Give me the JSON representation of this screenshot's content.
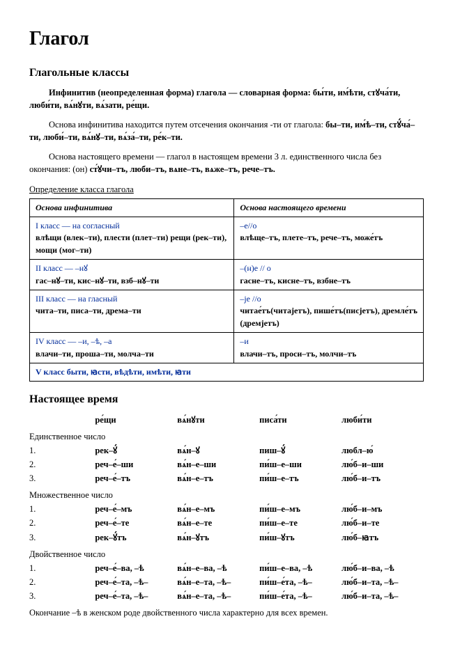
{
  "title": "Глагол",
  "section1": {
    "heading": "Глагольные классы",
    "para1": "Инфинитив (неопределенная форма) глагола — словарная форма: бы́ти, им́ѣти, стꙋча́ти, люби́ти, вѧ́нꙋти, вѧ́зати, ре́щи.",
    "para2_a": "Основа инфинитива находится путем отсечения окончания -ти от глагола: ",
    "para2_b": "бы–ти, им́ѣ–ти, стꙋ́ча́–ти, люби́–ти, вѧ́нꙋ–ти, вѧ́за́–ти, ре́к–ти.",
    "para3_a": "Основа настоящего времени — глагол в настоящем времени 3 л. единственного числа без окончания: (он) ",
    "para3_b": "ст́ꙋчи–тъ, люби–тъ, вѧне–тъ, вѧже–тъ, рече–тъ.",
    "tableCaption": "Определение класса глагола"
  },
  "classTable": {
    "headers": [
      "Основа инфинитива",
      "Основа настоящего времени"
    ],
    "rows": [
      {
        "left_head": "I класс — на согласный",
        "left_body": "влѣщи (влек–ти), плести (плет–ти) рещи   (рек–ти),   мощи (мог–ти)",
        "right_head": "–е//о",
        "right_body": "влѣще–тъ, плете–тъ,   рече–тъ, може́тъ"
      },
      {
        "left_head": "II класс — –нꙋ",
        "left_body": "гас–нꙋ–ти, кис–нꙋ–ти, взб–нꙋ–ти",
        "right_head": "–(н)е // о",
        "right_body": "гасне–тъ, кисне–тъ, взбне–тъ"
      },
      {
        "left_head": "III класс — на гласный",
        "left_body": "чита–ти, писа–ти, дрема–ти",
        "right_head": "–je //о",
        "right_body": "читае́тъ(читаjетъ), пише́тъ(писjетъ), дремле́тъ   (дремjетъ)"
      },
      {
        "left_head": "IV класс — –и, –ѣ, –а",
        "left_body": "влачи–ти, проша–ти, молча–ти",
        "right_head": "–и",
        "right_body": "влачи–тъ, проси–тъ,   молчи–тъ"
      },
      {
        "left_full": "V класс  быти, ꙗсти, вѣдѣти, имѣти, ꙗти"
      }
    ]
  },
  "section2": {
    "heading": "Настоящее время",
    "verbs": [
      "ре́щи",
      "вѧ́нꙋти",
      "писа́ти",
      "люби́ти"
    ],
    "groups": [
      {
        "label": "Единственное число",
        "rows": [
          [
            "1.",
            "рек–ꙋ́",
            "вѧ́н–ꙋ",
            "пиш–ꙋ́",
            "любл–ю́"
          ],
          [
            "2.",
            "реч–е́–ши",
            "вѧ́н–е–ши",
            "пи́ш–е–ши",
            "лю́б–и–ши"
          ],
          [
            "3.",
            "реч–е́–тъ",
            "вѧ́н–е–тъ",
            "пи́ш–е–тъ",
            "лю́б–и–тъ"
          ]
        ]
      },
      {
        "label": "Множественное число",
        "rows": [
          [
            "1.",
            "реч–е́–мъ",
            "вѧ́н–е–мъ",
            "пи́ш–е–мъ",
            "лю́б–и–мъ"
          ],
          [
            "2.",
            "реч–е́–те",
            "вѧ́н–е–те",
            "пи́ш–е–те",
            "лю́б–и–те"
          ],
          [
            "3.",
            "рек–ꙋ́тъ",
            "вѧ́н–ꙋтъ",
            "пи́ш–ꙋтъ",
            "лю́б–ꙗтъ"
          ]
        ]
      },
      {
        "label": "Двойственное число",
        "rows": [
          [
            "1.",
            "реч–е́–ва, –ѣ",
            "вѧ́н–е–ва, –ѣ",
            "пи́ш–е–ва, –ѣ",
            "лю́б–и–ва, –ѣ"
          ],
          [
            "2.",
            "реч–е́–та, –ѣ–",
            "вѧ́н–е–та, –ѣ–",
            "пи́ш–е́та, –ѣ–",
            "лю́б–и–та, –ѣ–"
          ],
          [
            "3.",
            "реч–е́–та, –ѣ–",
            "вѧ́н–е–та, –ѣ–",
            "пи́ш–е́та, –ѣ–",
            "лю́б–и–та, –ѣ–"
          ]
        ]
      }
    ],
    "footnote": "Окончание –ѣ в женском роде двойственного числа характерно для всех времен."
  },
  "colors": {
    "text": "#000000",
    "blue": "#002b99",
    "background": "#ffffff",
    "border": "#000000"
  }
}
